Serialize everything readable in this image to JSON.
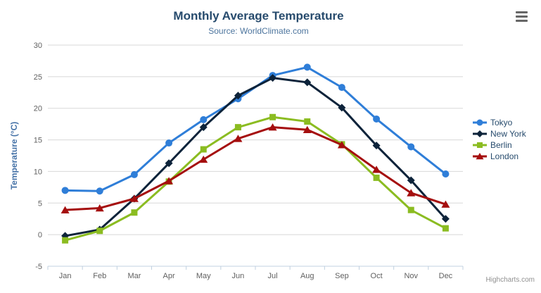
{
  "chart": {
    "title": "Monthly Average Temperature",
    "subtitle": "Source: WorldClimate.com",
    "credits": "Highcharts.com",
    "menu_icon": "hamburger-menu-icon",
    "colors": {
      "title": "#274b6d",
      "subtitle": "#4d759e",
      "axis_labels": "#606060",
      "y_axis_title": "#4572a7",
      "gridline": "#d8d8d8",
      "axis_line": "#c0d0e0",
      "legend_text": "#274b6d",
      "credits_text": "#909090"
    }
  },
  "chart_data": {
    "type": "line",
    "title": "Monthly Average Temperature",
    "subtitle": "Source: WorldClimate.com",
    "xlabel": "",
    "ylabel": "Temperature (°C)",
    "ylim": [
      -5,
      30
    ],
    "yticks": [
      -5,
      0,
      5,
      10,
      15,
      20,
      25,
      30
    ],
    "grid": true,
    "legend_position": "right",
    "categories": [
      "Jan",
      "Feb",
      "Mar",
      "Apr",
      "May",
      "Jun",
      "Jul",
      "Aug",
      "Sep",
      "Oct",
      "Nov",
      "Dec"
    ],
    "series": [
      {
        "name": "Tokyo",
        "color": "#2f7ed8",
        "marker": "circle",
        "values": [
          7.0,
          6.9,
          9.5,
          14.5,
          18.2,
          21.5,
          25.2,
          26.5,
          23.3,
          18.3,
          13.9,
          9.6
        ]
      },
      {
        "name": "New York",
        "color": "#0d233a",
        "marker": "diamond",
        "values": [
          -0.2,
          0.8,
          5.7,
          11.3,
          17.0,
          22.0,
          24.8,
          24.1,
          20.1,
          14.1,
          8.6,
          2.5
        ]
      },
      {
        "name": "Berlin",
        "color": "#8bbc21",
        "marker": "square",
        "values": [
          -0.9,
          0.6,
          3.5,
          8.4,
          13.5,
          17.0,
          18.6,
          17.9,
          14.3,
          9.0,
          3.9,
          1.0
        ]
      },
      {
        "name": "London",
        "color": "#a50e0e",
        "marker": "triangle",
        "values": [
          3.9,
          4.2,
          5.7,
          8.5,
          11.9,
          15.2,
          17.0,
          16.6,
          14.2,
          10.3,
          6.6,
          4.8
        ]
      }
    ]
  }
}
